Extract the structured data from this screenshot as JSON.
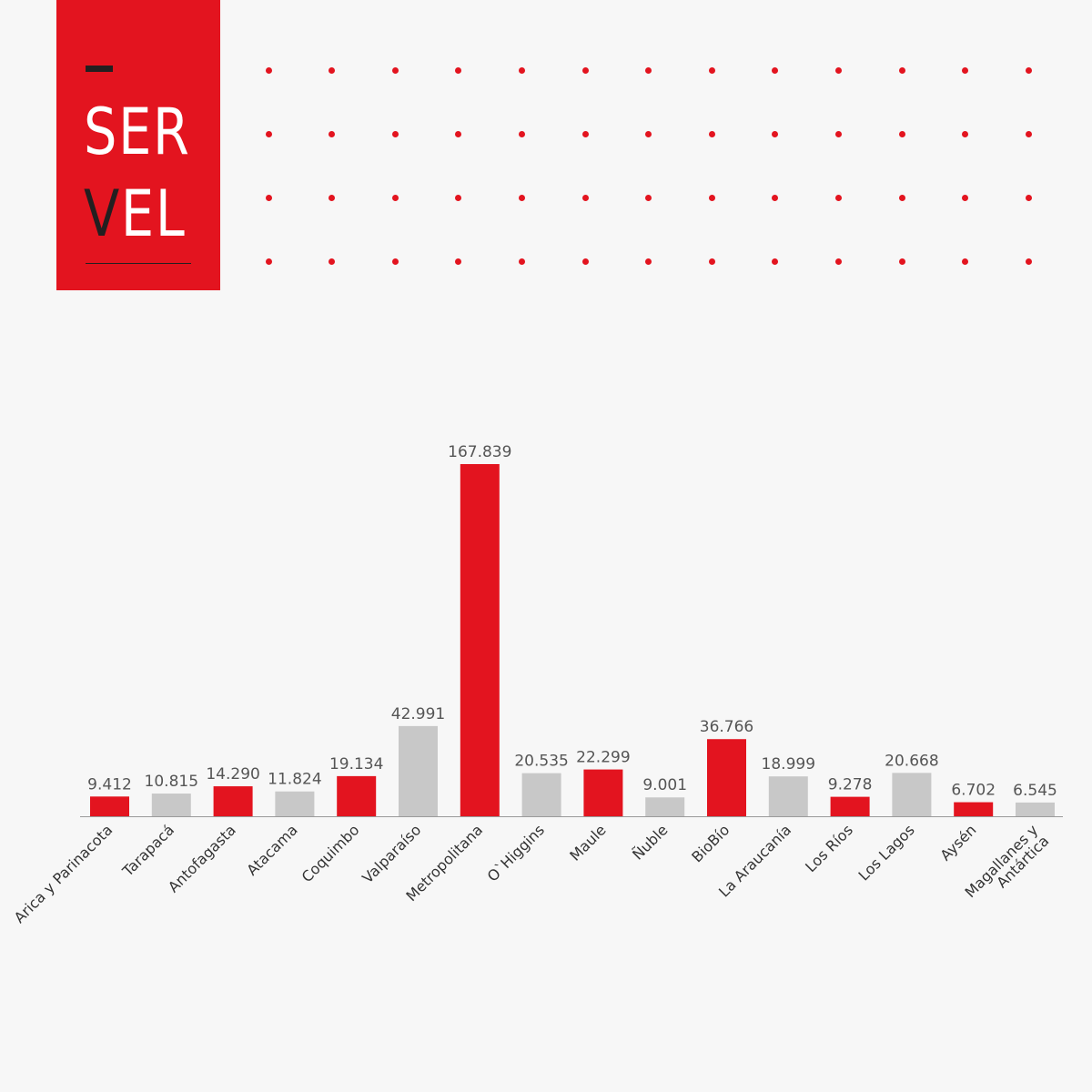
{
  "logo": {
    "line1": "SER",
    "line2_v": "V",
    "line2_rest": "EL",
    "background_color": "#e3141f",
    "accent_color": "#231f20"
  },
  "decoration": {
    "dot_color": "#e3141f",
    "dot_rows": 4,
    "dot_cols": 13
  },
  "chart_data": {
    "type": "bar",
    "title": "",
    "xlabel": "",
    "ylabel": "",
    "ylim": [
      0,
      167839
    ],
    "grid": false,
    "categories": [
      "Arica y Parinacota",
      "Tarapacá",
      "Antofagasta",
      "Atacama",
      "Coquimbo",
      "Valparaíso",
      "Metropolitana",
      "O`Higgins",
      "Maule",
      "Ñuble",
      "BioBío",
      "La Araucanía",
      "Los Ríos",
      "Los Lagos",
      "Aysén",
      [
        "Magallanes y",
        "Antártica"
      ]
    ],
    "values": [
      9412,
      10815,
      14290,
      11824,
      19134,
      42991,
      167839,
      20535,
      22299,
      9001,
      36766,
      18999,
      9278,
      20668,
      6702,
      6545
    ],
    "value_labels": [
      "9.412",
      "10.815",
      "14.290",
      "11.824",
      "19.134",
      "42.991",
      "167.839",
      "20.535",
      "22.299",
      "9.001",
      "36.766",
      "18.999",
      "9.278",
      "20.668",
      "6.702",
      "6.545"
    ],
    "colors": [
      "#e3141f",
      "#c8c8c8",
      "#e3141f",
      "#c8c8c8",
      "#e3141f",
      "#c8c8c8",
      "#e3141f",
      "#c8c8c8",
      "#e3141f",
      "#c8c8c8",
      "#e3141f",
      "#c8c8c8",
      "#e3141f",
      "#c8c8c8",
      "#e3141f",
      "#c8c8c8"
    ]
  }
}
